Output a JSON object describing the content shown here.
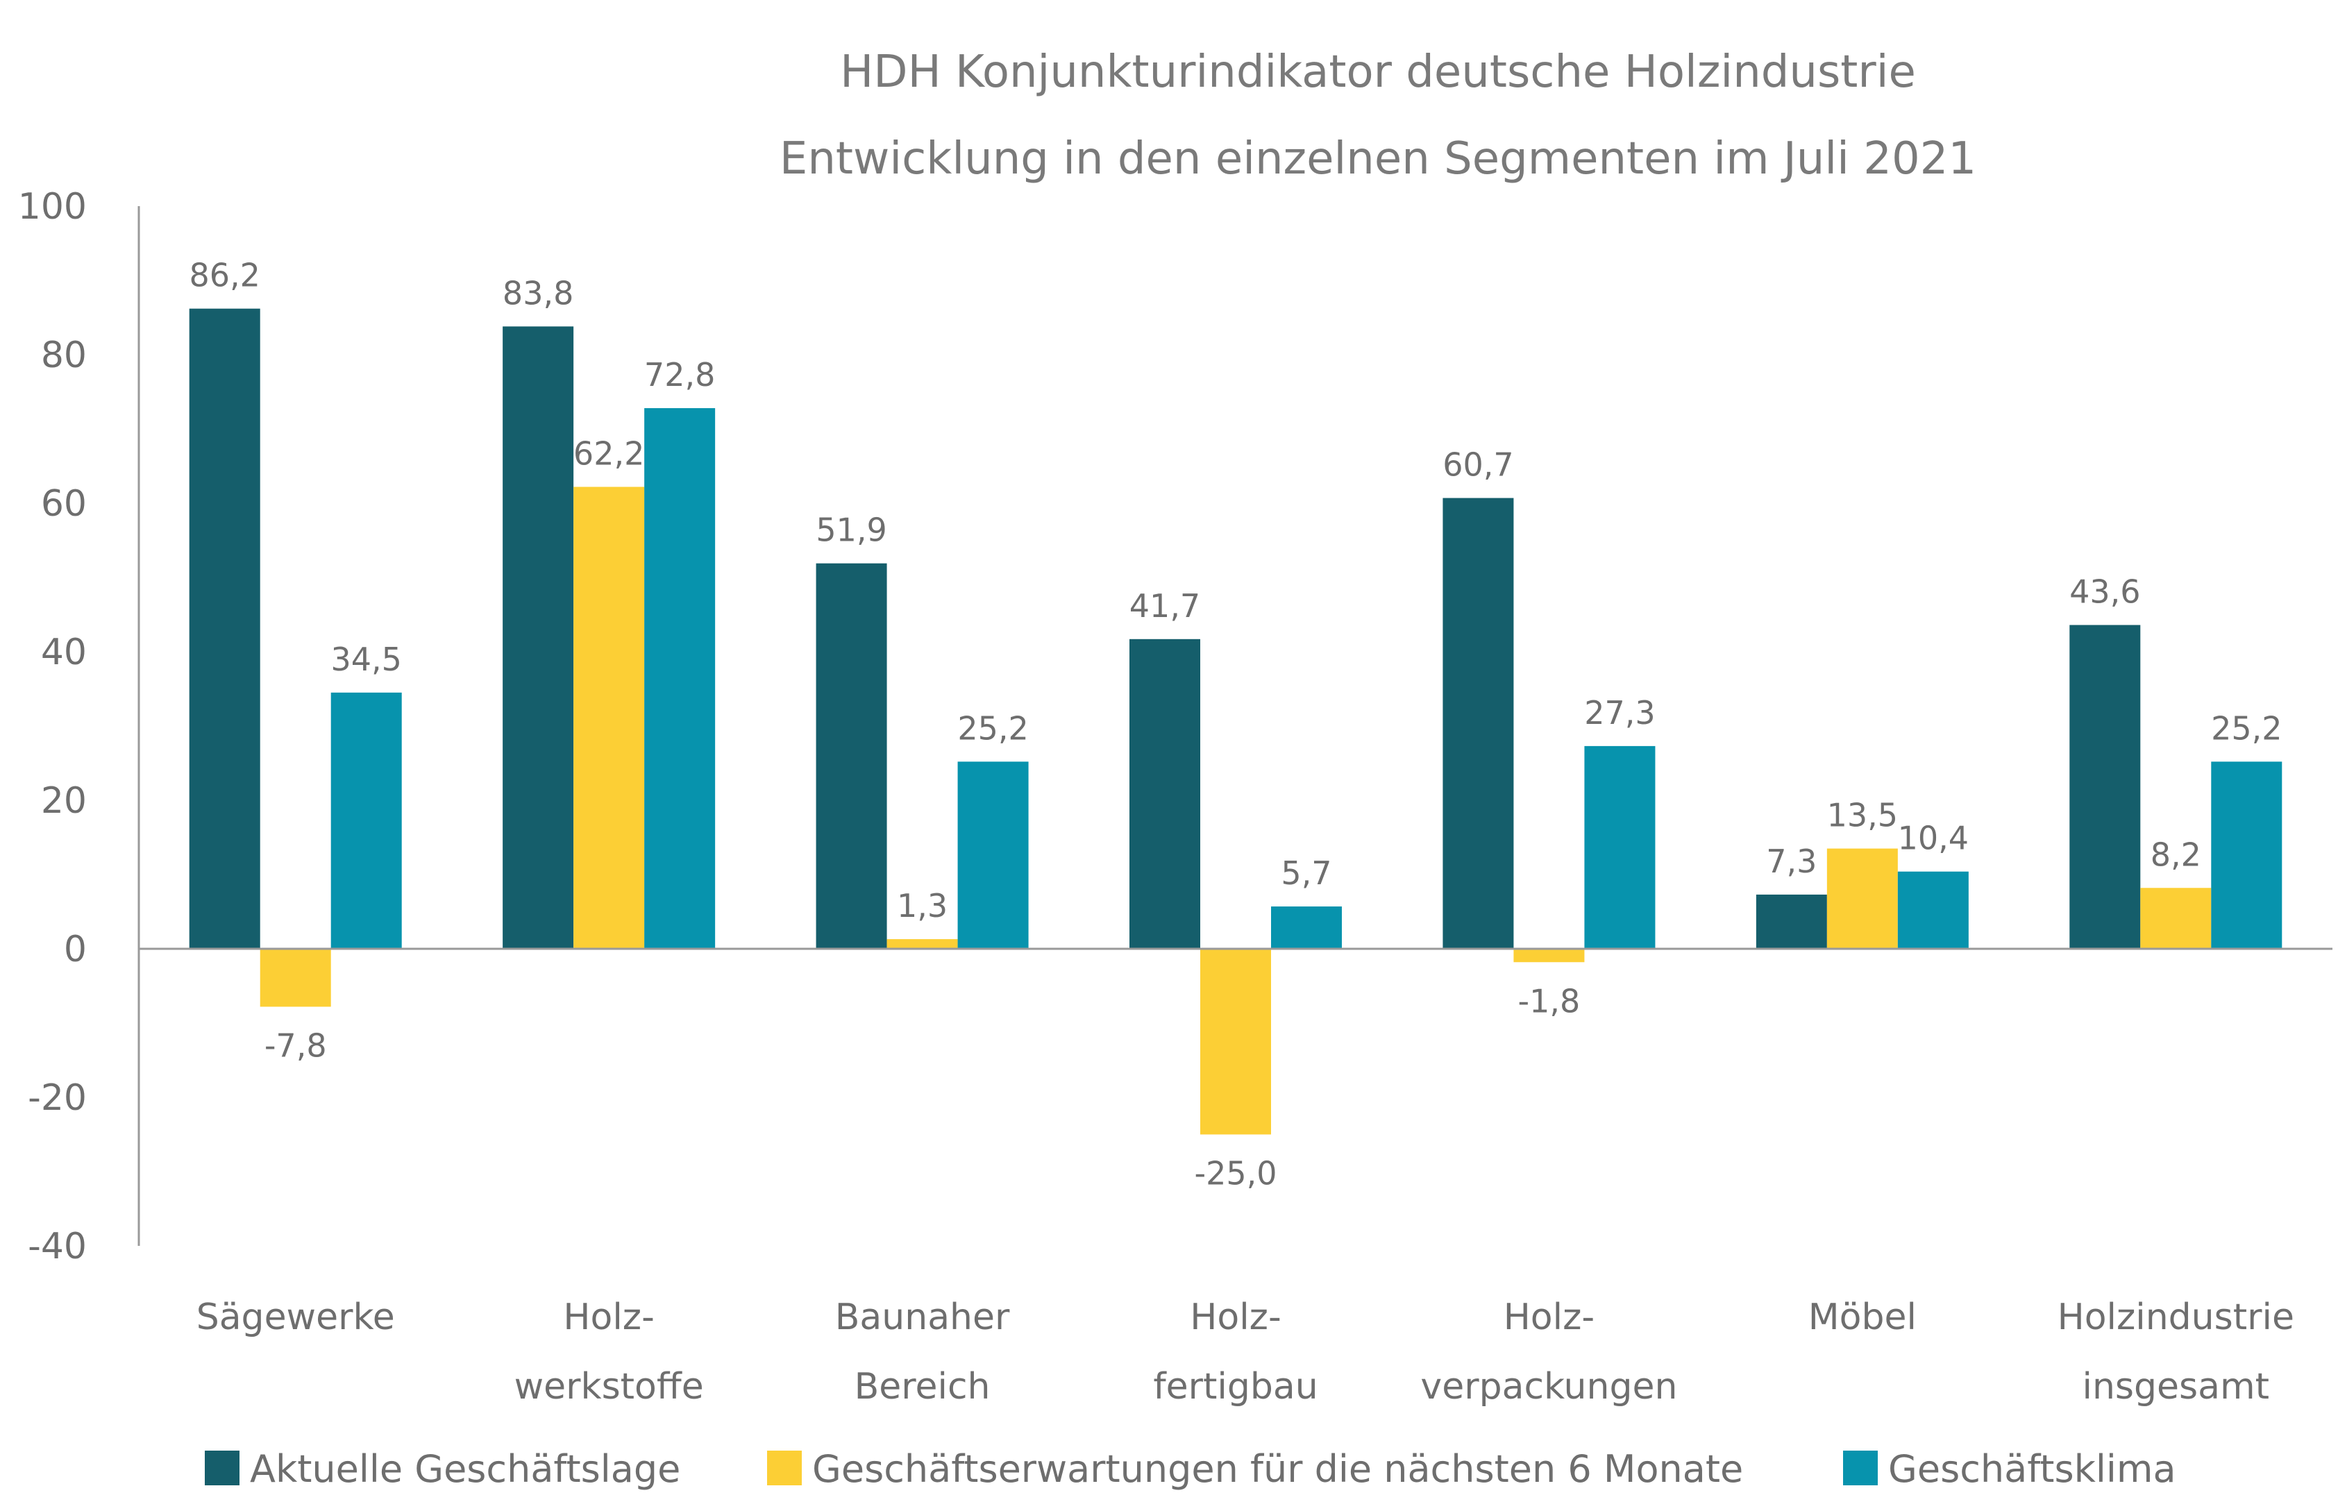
{
  "chart_data": {
    "type": "bar",
    "title": [
      "HDH Konjunkturindikator deutsche Holzindustrie",
      "Entwicklung in den einzelnen Segmenten im Juli 2021"
    ],
    "categories": [
      [
        "Sägewerke"
      ],
      [
        "Holz-",
        "werkstoffe"
      ],
      [
        "Baunaher",
        "Bereich"
      ],
      [
        "Holz-",
        "fertigbau"
      ],
      [
        "Holz-",
        "verpackungen"
      ],
      [
        "Möbel"
      ],
      [
        "Holzindustrie",
        "insgesamt"
      ]
    ],
    "series": [
      {
        "name": "Aktuelle Geschäftslage",
        "color": "#155e6b",
        "values": [
          86.2,
          83.8,
          51.9,
          41.7,
          60.7,
          7.3,
          43.6
        ],
        "labels": [
          "86,2",
          "83,8",
          "51,9",
          "41,7",
          "60,7",
          "7,3",
          "43,6"
        ]
      },
      {
        "name": "Geschäftserwartungen für die nächsten 6 Monate",
        "color": "#fccf35",
        "values": [
          -7.8,
          62.2,
          1.3,
          -25.0,
          -1.8,
          13.5,
          8.2
        ],
        "labels": [
          "-7,8",
          "62,2",
          "1,3",
          "-25,0",
          "-1,8",
          "13,5",
          "8,2"
        ]
      },
      {
        "name": "Geschäftsklima",
        "color": "#0793ad",
        "values": [
          34.5,
          72.8,
          25.2,
          5.7,
          27.3,
          10.4,
          25.2
        ],
        "labels": [
          "34,5",
          "72,8",
          "25,2",
          "5,7",
          "27,3",
          "10,4",
          "25,2"
        ]
      }
    ],
    "ylim": [
      -40,
      100
    ],
    "yticks": [
      100,
      80,
      60,
      40,
      20,
      0,
      -20,
      -40
    ],
    "ytick_labels": [
      "100",
      "80",
      "60",
      "40",
      "20",
      "0",
      "-20",
      "-40"
    ],
    "grid": false,
    "legend_position": "bottom"
  }
}
